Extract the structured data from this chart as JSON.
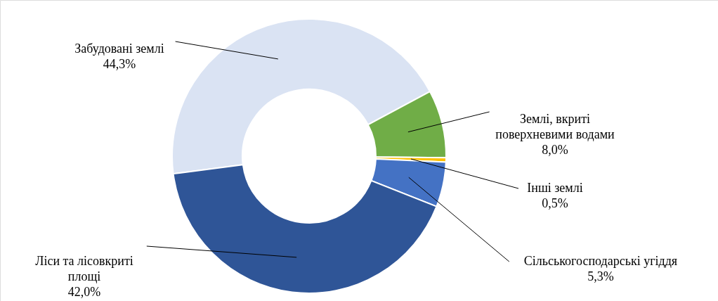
{
  "chart_data": {
    "type": "donut",
    "categories": [
      "Забудовані землі",
      "Землі, вкриті поверхневими водами",
      "Інші землі",
      "Сільськогосподарські угіддя",
      "Ліси та лісовкриті площі"
    ],
    "values": [
      44.3,
      8.0,
      0.5,
      5.3,
      42.0
    ],
    "value_labels": [
      "44,3%",
      "8,0%",
      "0,5%",
      "5,3%",
      "42,0%"
    ],
    "colors": [
      "#dae3f3",
      "#70ad47",
      "#ffc000",
      "#4472c4",
      "#2f5597"
    ]
  }
}
